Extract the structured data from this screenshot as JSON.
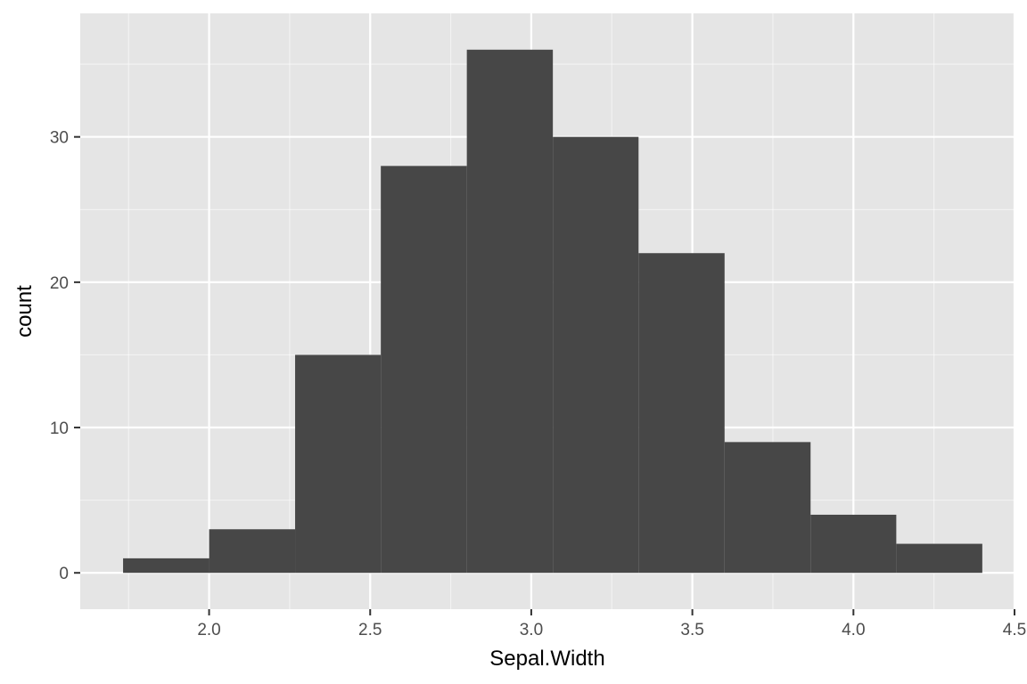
{
  "chart_data": {
    "type": "bar",
    "subtype": "histogram",
    "title": "",
    "xlabel": "Sepal.Width",
    "ylabel": "count",
    "xlim": [
      1.6,
      4.5
    ],
    "ylim": [
      -2.5,
      38.5
    ],
    "x_ticks": [
      "2.0",
      "2.5",
      "3.0",
      "3.5",
      "4.0",
      "4.5"
    ],
    "x_tick_values": [
      2.0,
      2.5,
      3.0,
      3.5,
      4.0,
      4.5
    ],
    "y_ticks": [
      "0",
      "10",
      "20",
      "30"
    ],
    "y_tick_values": [
      0,
      10,
      20,
      30
    ],
    "bins": [
      {
        "x0": 1.733,
        "x1": 2.0,
        "count": 1
      },
      {
        "x0": 2.0,
        "x1": 2.267,
        "count": 3
      },
      {
        "x0": 2.267,
        "x1": 2.533,
        "count": 15
      },
      {
        "x0": 2.533,
        "x1": 2.8,
        "count": 28
      },
      {
        "x0": 2.8,
        "x1": 3.067,
        "count": 36
      },
      {
        "x0": 3.067,
        "x1": 3.333,
        "count": 30
      },
      {
        "x0": 3.333,
        "x1": 3.6,
        "count": 22
      },
      {
        "x0": 3.6,
        "x1": 3.867,
        "count": 9
      },
      {
        "x0": 3.867,
        "x1": 4.133,
        "count": 4
      },
      {
        "x0": 4.133,
        "x1": 4.4,
        "count": 2
      }
    ],
    "grid": true,
    "colors": {
      "panel_background": "#e5e5e5",
      "grid_major": "#ffffff",
      "bar_fill": "#474747",
      "tick_color": "#333333"
    }
  }
}
